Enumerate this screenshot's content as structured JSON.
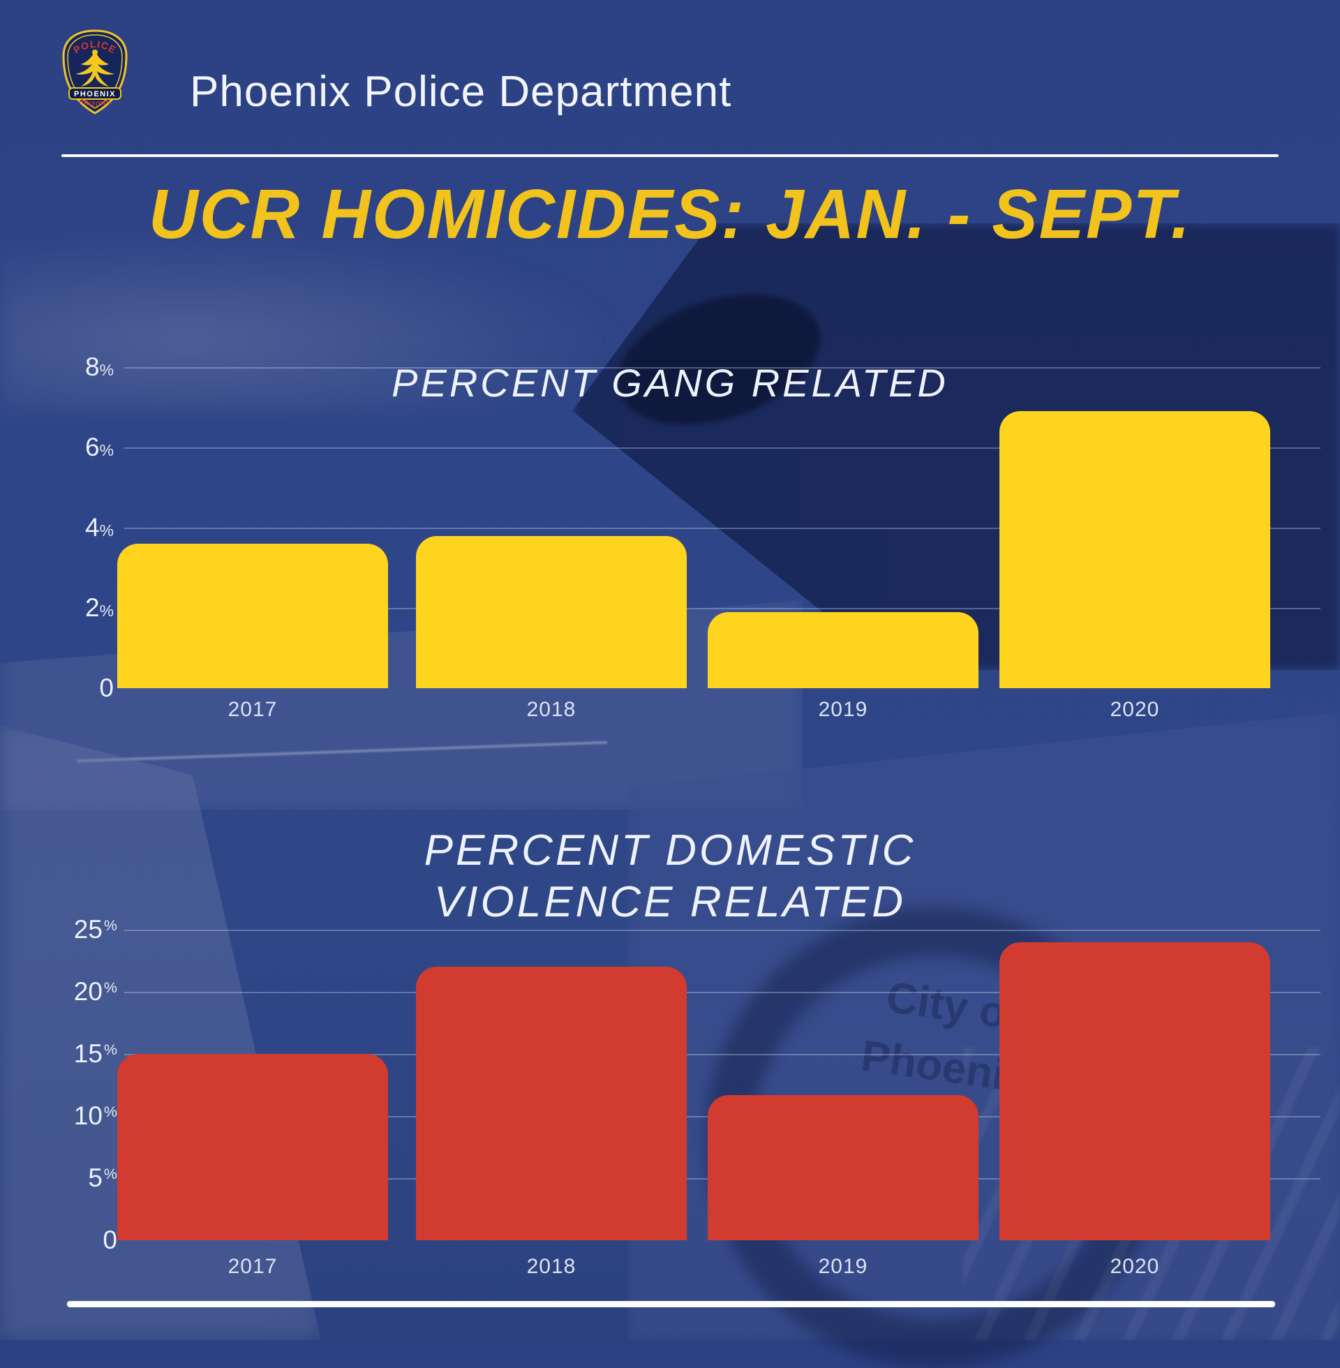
{
  "header": {
    "org_name": "Phoenix Police Department",
    "badge": {
      "top_text": "POLICE",
      "middle_text": "PHOENIX",
      "bottom_text": "ARIZONA"
    }
  },
  "title": "UCR HOMICIDES: JAN. - SEPT.",
  "watermark": {
    "line1": "City of",
    "line2": "Phoenix"
  },
  "colors": {
    "background_blue": "#2e4587",
    "title_yellow": "#f2c21d",
    "bar_yellow": "#ffd41e",
    "bar_red": "#d23b30",
    "grid_line": "rgba(205,215,238,0.35)",
    "axis_text": "#edf1fa"
  },
  "chart_data": [
    {
      "type": "bar",
      "title": "PERCENT GANG RELATED",
      "title_lines": [
        "PERCENT GANG RELATED"
      ],
      "categories": [
        "2017",
        "2018",
        "2019",
        "2020"
      ],
      "values": [
        3.6,
        3.8,
        1.9,
        6.9
      ],
      "yticks": [
        8,
        6,
        4,
        2,
        0
      ],
      "ytick_labels": [
        "8%",
        "6%",
        "4%",
        "2%",
        "0"
      ],
      "ylim": [
        0,
        8.6
      ],
      "grid": true,
      "legend": "none",
      "xlabel": "",
      "ylabel": "",
      "bar_color": "#ffd41e"
    },
    {
      "type": "bar",
      "title": "PERCENT DOMESTIC VIOLENCE RELATED",
      "title_lines": [
        "PERCENT DOMESTIC",
        "VIOLENCE RELATED"
      ],
      "categories": [
        "2017",
        "2018",
        "2019",
        "2020"
      ],
      "values": [
        15,
        22,
        11.7,
        24
      ],
      "yticks": [
        25,
        20,
        15,
        10,
        5,
        0
      ],
      "ytick_labels": [
        "25%",
        "20%",
        "15%",
        "10%",
        "5%",
        "0"
      ],
      "ylim": [
        0,
        27
      ],
      "grid": true,
      "legend": "none",
      "xlabel": "",
      "ylabel": "",
      "bar_color": "#d23b30"
    }
  ]
}
